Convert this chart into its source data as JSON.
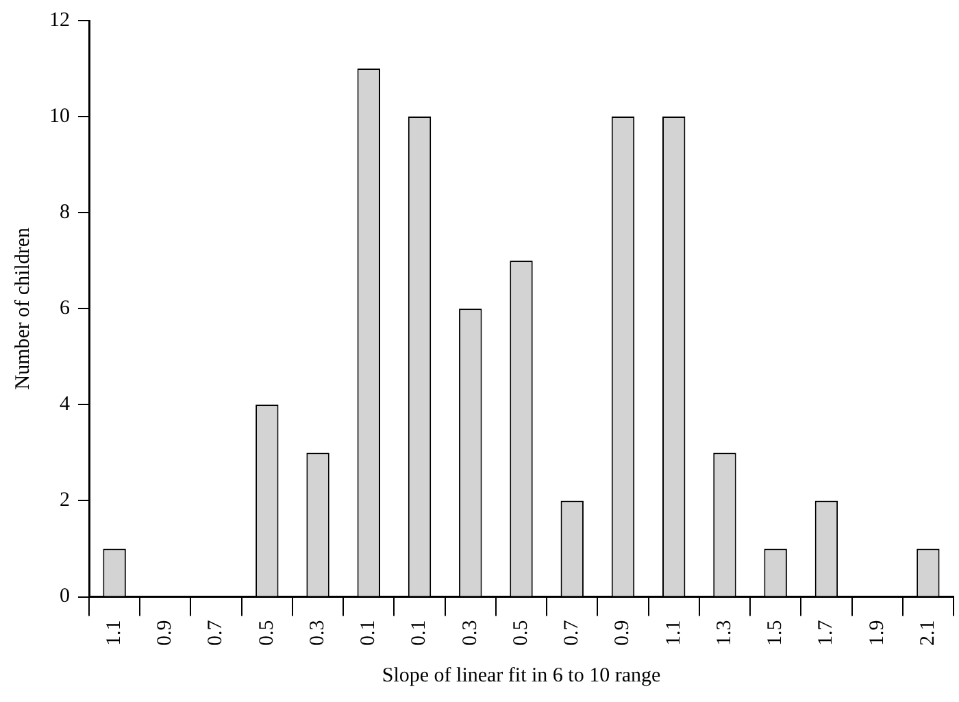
{
  "chart_data": {
    "type": "bar",
    "xlabel": "Slope of linear fit in 6 to 10 range",
    "ylabel": "Number of children",
    "categories": [
      "1.1",
      "0.9",
      "0.7",
      "0.5",
      "0.3",
      "0.1",
      "0.1",
      "0.3",
      "0.5",
      "0.7",
      "0.9",
      "1.1",
      "1.3",
      "1.5",
      "1.7",
      "1.9",
      "2.1"
    ],
    "values": [
      1,
      0,
      0,
      4,
      3,
      11,
      10,
      6,
      7,
      2,
      10,
      10,
      3,
      1,
      2,
      0,
      1
    ],
    "color": "#d3d3d3",
    "ylim": [
      0,
      12
    ],
    "yticks": [
      0,
      2,
      4,
      6,
      8,
      10,
      12
    ],
    "grid": false,
    "legend": false
  }
}
